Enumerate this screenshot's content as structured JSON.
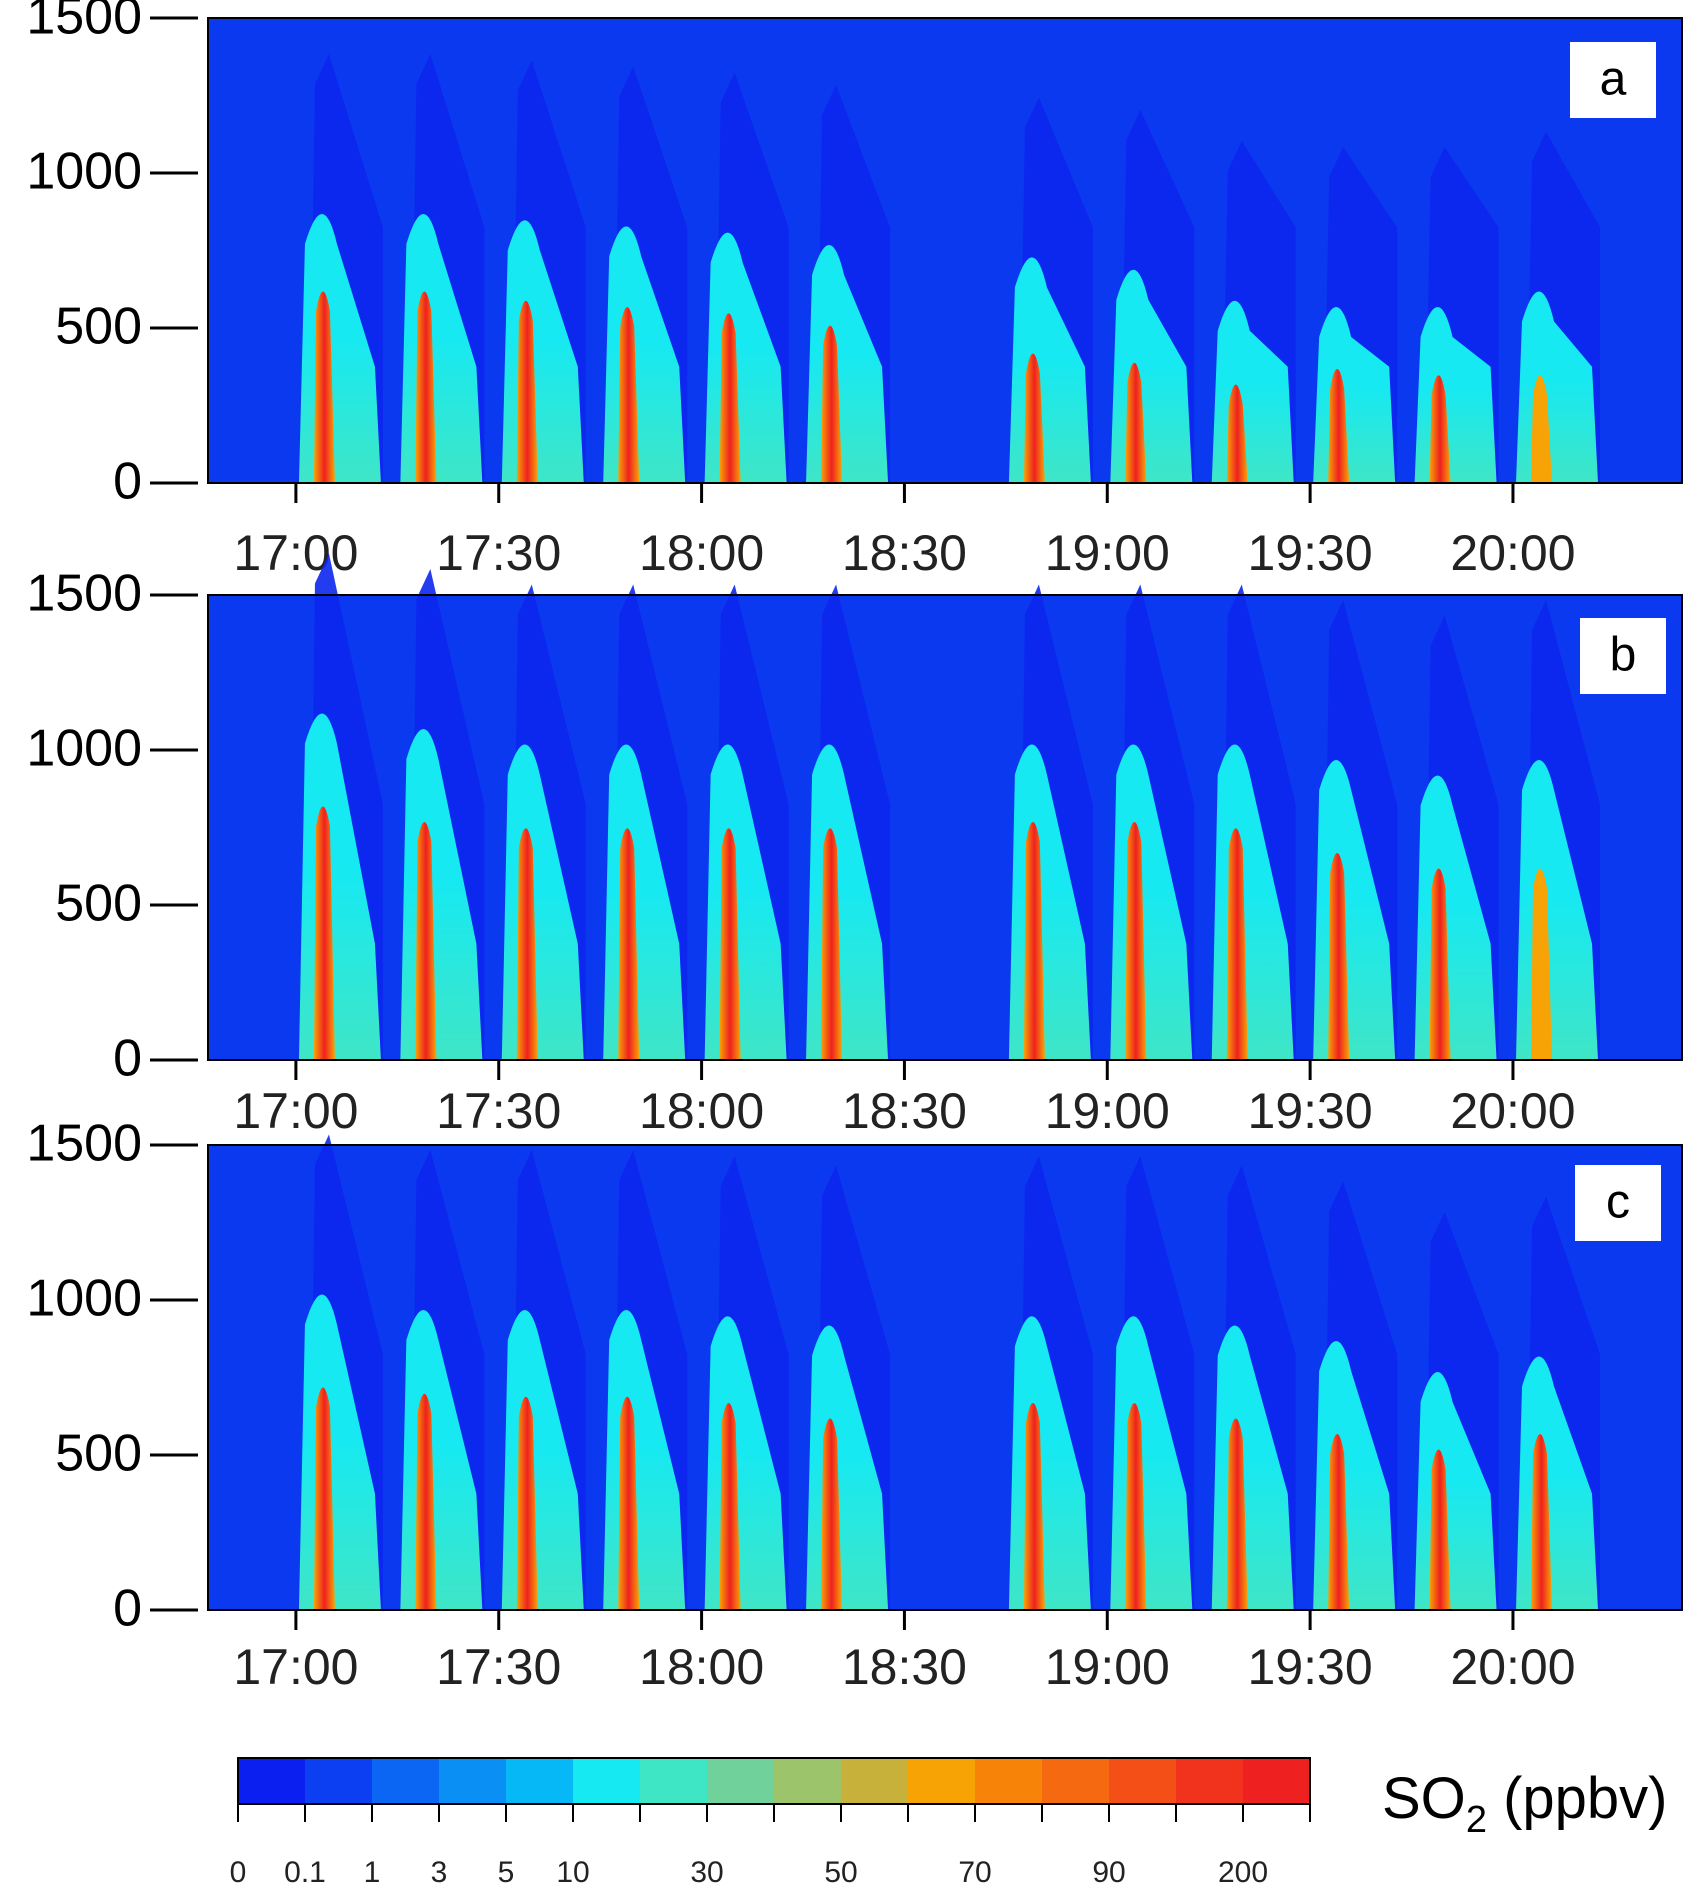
{
  "chart_data": {
    "type": "heatmap",
    "colorbar": {
      "title": "SO",
      "title_sub": "2",
      "title_unit": " (ppbv)",
      "tick_labels": [
        "0",
        "0.1",
        "1",
        "3",
        "5",
        "10",
        "30",
        "50",
        "70",
        "90",
        "200"
      ],
      "colors": [
        "#0b1ff0",
        "#0c3ff2",
        "#0b67f3",
        "#0a8ff4",
        "#06b8f5",
        "#16e9f2",
        "#3fe6c6",
        "#70d29a",
        "#9cc46a",
        "#c8b13b",
        "#f7a305",
        "#f78409",
        "#f56a10",
        "#f44f16",
        "#f1321c",
        "#ef2020"
      ]
    },
    "panels": [
      {
        "label": "a",
        "ylim": [
          0,
          1500
        ],
        "yticks": [
          "0",
          "500",
          "1000",
          "1500"
        ],
        "xticks": [
          "17:00",
          "17:30",
          "18:00",
          "18:30",
          "19:00",
          "19:30",
          "20:00"
        ],
        "plumes": [
          {
            "time": "17:04",
            "core_top": 650,
            "plume_top": 900,
            "core_color": "#ef2020"
          },
          {
            "time": "17:19",
            "core_top": 650,
            "plume_top": 900,
            "core_color": "#ef2020"
          },
          {
            "time": "17:34",
            "core_top": 620,
            "plume_top": 880,
            "core_color": "#ef2020"
          },
          {
            "time": "17:49",
            "core_top": 600,
            "plume_top": 860,
            "core_color": "#ef2020"
          },
          {
            "time": "18:04",
            "core_top": 580,
            "plume_top": 840,
            "core_color": "#ef2020"
          },
          {
            "time": "18:19",
            "core_top": 540,
            "plume_top": 800,
            "core_color": "#ef2020"
          },
          {
            "time": "18:49",
            "core_top": 450,
            "plume_top": 760,
            "core_color": "#ef2020"
          },
          {
            "time": "19:04",
            "core_top": 420,
            "plume_top": 720,
            "core_color": "#ef2020"
          },
          {
            "time": "19:19",
            "core_top": 350,
            "plume_top": 620,
            "core_color": "#ef2020"
          },
          {
            "time": "19:34",
            "core_top": 400,
            "plume_top": 600,
            "core_color": "#ef2020"
          },
          {
            "time": "19:49",
            "core_top": 380,
            "plume_top": 600,
            "core_color": "#ef2020"
          },
          {
            "time": "20:04",
            "core_top": 380,
            "plume_top": 650,
            "core_color": "#f7a305"
          }
        ]
      },
      {
        "label": "b",
        "ylim": [
          0,
          1500
        ],
        "yticks": [
          "0",
          "500",
          "1000",
          "1500"
        ],
        "xticks": [
          "17:00",
          "17:30",
          "18:00",
          "18:30",
          "19:00",
          "19:30",
          "20:00"
        ],
        "plumes": [
          {
            "time": "17:04",
            "core_top": 850,
            "plume_top": 1150,
            "core_color": "#ef2020"
          },
          {
            "time": "17:19",
            "core_top": 800,
            "plume_top": 1100,
            "core_color": "#ef2020"
          },
          {
            "time": "17:34",
            "core_top": 780,
            "plume_top": 1050,
            "core_color": "#ef2020"
          },
          {
            "time": "17:49",
            "core_top": 780,
            "plume_top": 1050,
            "core_color": "#ef2020"
          },
          {
            "time": "18:04",
            "core_top": 780,
            "plume_top": 1050,
            "core_color": "#ef2020"
          },
          {
            "time": "18:19",
            "core_top": 780,
            "plume_top": 1050,
            "core_color": "#ef2020"
          },
          {
            "time": "18:49",
            "core_top": 800,
            "plume_top": 1050,
            "core_color": "#ef2020"
          },
          {
            "time": "19:04",
            "core_top": 800,
            "plume_top": 1050,
            "core_color": "#ef2020"
          },
          {
            "time": "19:19",
            "core_top": 780,
            "plume_top": 1050,
            "core_color": "#ef2020"
          },
          {
            "time": "19:34",
            "core_top": 700,
            "plume_top": 1000,
            "core_color": "#ef2020"
          },
          {
            "time": "19:49",
            "core_top": 650,
            "plume_top": 950,
            "core_color": "#ef2020"
          },
          {
            "time": "20:04",
            "core_top": 650,
            "plume_top": 1000,
            "core_color": "#f7a305"
          }
        ]
      },
      {
        "label": "c",
        "ylim": [
          0,
          1500
        ],
        "yticks": [
          "0",
          "500",
          "1000",
          "1500"
        ],
        "xticks": [
          "17:00",
          "17:30",
          "18:00",
          "18:30",
          "19:00",
          "19:30",
          "20:00"
        ],
        "plumes": [
          {
            "time": "17:04",
            "core_top": 750,
            "plume_top": 1050,
            "core_color": "#ef2020"
          },
          {
            "time": "17:19",
            "core_top": 730,
            "plume_top": 1000,
            "core_color": "#ef2020"
          },
          {
            "time": "17:34",
            "core_top": 720,
            "plume_top": 1000,
            "core_color": "#ef2020"
          },
          {
            "time": "17:49",
            "core_top": 720,
            "plume_top": 1000,
            "core_color": "#ef2020"
          },
          {
            "time": "18:04",
            "core_top": 700,
            "plume_top": 980,
            "core_color": "#ef2020"
          },
          {
            "time": "18:19",
            "core_top": 650,
            "plume_top": 950,
            "core_color": "#ef2020"
          },
          {
            "time": "18:49",
            "core_top": 700,
            "plume_top": 980,
            "core_color": "#ef2020"
          },
          {
            "time": "19:04",
            "core_top": 700,
            "plume_top": 980,
            "core_color": "#ef2020"
          },
          {
            "time": "19:19",
            "core_top": 650,
            "plume_top": 950,
            "core_color": "#ef2020"
          },
          {
            "time": "19:34",
            "core_top": 600,
            "plume_top": 900,
            "core_color": "#ef2020"
          },
          {
            "time": "19:49",
            "core_top": 550,
            "plume_top": 800,
            "core_color": "#ef2020"
          },
          {
            "time": "20:04",
            "core_top": 600,
            "plume_top": 850,
            "core_color": "#ef2020"
          }
        ]
      }
    ]
  }
}
